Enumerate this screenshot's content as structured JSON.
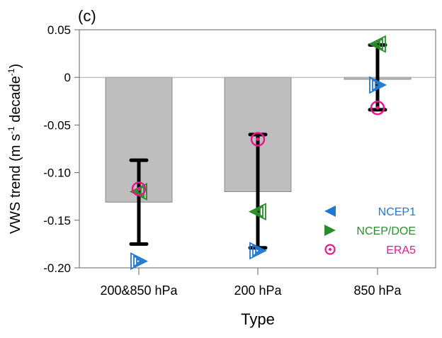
{
  "chart_data": {
    "type": "bar",
    "panel_label": "(c)",
    "title": "",
    "xlabel": "Type",
    "ylabel": {
      "main": "VWS trend (m s",
      "sup1": "-1",
      "mid": " decade",
      "sup2": "-1",
      "end": ")"
    },
    "categories": [
      "200&850 hPa",
      "200 hPa",
      "850 hPa"
    ],
    "ylim": [
      -0.2,
      0.05
    ],
    "yticks": [
      0.05,
      0,
      -0.05,
      -0.1,
      -0.15,
      -0.2
    ],
    "ytick_labels": [
      "0.05",
      "0",
      "-0.05",
      "-0.10",
      "-0.15",
      "-0.20"
    ],
    "bar_values": [
      -0.131,
      -0.12,
      -0.002
    ],
    "error_bars": [
      {
        "upper": -0.087,
        "lower": -0.175
      },
      {
        "upper": -0.06,
        "lower": -0.179
      },
      {
        "upper": 0.034,
        "lower": -0.034
      }
    ],
    "series": [
      {
        "name": "NCEP1",
        "marker": "triangle-left",
        "color": "#1f78d1",
        "values": [
          -0.193,
          -0.182,
          -0.008
        ]
      },
      {
        "name": "NCEP/DOE",
        "marker": "triangle-right",
        "color": "#2a8c2a",
        "values": [
          -0.12,
          -0.141,
          0.035
        ]
      },
      {
        "name": "ERA5",
        "marker": "circle-dot",
        "color": "#e8188c",
        "values": [
          -0.117,
          -0.065,
          -0.032
        ]
      }
    ],
    "bar_color": "#bebebe",
    "legend_position": "bottom-right",
    "grid": false
  }
}
